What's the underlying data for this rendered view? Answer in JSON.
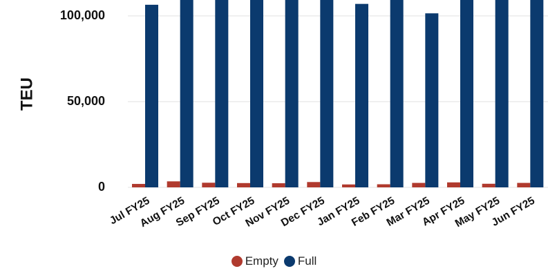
{
  "chart_data": {
    "type": "bar",
    "ylabel": "TEU",
    "xlabel": "",
    "ylim": [
      0,
      110000
    ],
    "yticks": [
      {
        "value": 0,
        "label": "0"
      },
      {
        "value": 50000,
        "label": "50,000"
      },
      {
        "value": 100000,
        "label": "100,000"
      }
    ],
    "grid": true,
    "legend_position": "bottom",
    "categories": [
      "Jul FY25",
      "Aug FY25",
      "Sep FY25",
      "Oct FY25",
      "Nov FY25",
      "Dec FY25",
      "Jan FY25",
      "Feb FY25",
      "Mar FY25",
      "Apr FY25",
      "May FY25",
      "Jun FY25"
    ],
    "series": [
      {
        "name": "Empty",
        "color": "#b03a2e",
        "values": [
          2000,
          3500,
          2700,
          2500,
          2400,
          3100,
          1700,
          1800,
          2600,
          2900,
          2100,
          2600
        ]
      },
      {
        "name": "Full",
        "color": "#0b3a6e",
        "values": [
          106500,
          115000,
          115000,
          115000,
          115000,
          115000,
          107000,
          115000,
          101500,
          115000,
          115000,
          115000
        ]
      }
    ]
  }
}
